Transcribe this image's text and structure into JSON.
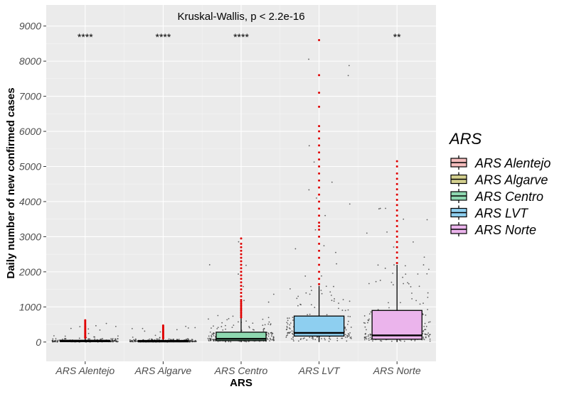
{
  "chart_data": {
    "type": "box",
    "title": "Kruskal-Wallis, p < 2.2e-16",
    "xlabel": "ARS",
    "ylabel": "Daily number of new confirmed cases",
    "ylim": [
      -550,
      9600
    ],
    "yticks": [
      0,
      1000,
      2000,
      3000,
      4000,
      5000,
      6000,
      7000,
      8000,
      9000
    ],
    "categories": [
      "ARS Alentejo",
      "ARS Algarve",
      "ARS Centro",
      "ARS LVT",
      "ARS Norte"
    ],
    "colors": [
      "#f4bcbc",
      "#d4d08e",
      "#8ed8b0",
      "#8ecff0",
      "#ebb4ec"
    ],
    "significance": [
      "****",
      "****",
      "****",
      "",
      "**"
    ],
    "boxes": [
      {
        "q1": 10,
        "median": 25,
        "q3": 50,
        "whisker_low": 0,
        "whisker_high": 100
      },
      {
        "q1": 10,
        "median": 20,
        "q3": 45,
        "whisker_low": 0,
        "whisker_high": 90
      },
      {
        "q1": 40,
        "median": 90,
        "q3": 280,
        "whisker_low": 0,
        "whisker_high": 690
      },
      {
        "q1": 170,
        "median": 260,
        "q3": 740,
        "whisker_low": 0,
        "whisker_high": 1600
      },
      {
        "q1": 80,
        "median": 190,
        "q3": 900,
        "whisker_low": 0,
        "whisker_high": 2200
      }
    ],
    "outliers": [
      [
        120,
        140,
        160,
        190,
        220,
        250,
        280,
        310,
        340,
        370,
        400,
        430,
        460,
        500,
        540,
        580,
        620
      ],
      [
        100,
        120,
        140,
        170,
        200,
        230,
        260,
        290,
        320,
        350,
        380,
        410,
        440,
        470
      ],
      [
        700,
        750,
        800,
        850,
        900,
        950,
        1000,
        1050,
        1100,
        1150,
        1200,
        1300,
        1400,
        1500,
        1600,
        1700,
        1800,
        1900,
        2000,
        2100,
        2200,
        2300,
        2400,
        2500,
        2600,
        2700,
        2800,
        2950
      ],
      [
        1650,
        1800,
        2000,
        2200,
        2400,
        2600,
        2800,
        3000,
        3200,
        3300,
        3400,
        3600,
        3800,
        4000,
        4200,
        4400,
        4600,
        4800,
        5000,
        5200,
        5400,
        5600,
        5800,
        6000,
        6150,
        6700,
        7100,
        7600,
        8600
      ],
      [
        2250,
        2400,
        2550,
        2700,
        2850,
        3000,
        3150,
        3300,
        3450,
        3600,
        3750,
        3900,
        4050,
        4200,
        4350,
        4500,
        4650,
        4800,
        5000,
        5150
      ]
    ],
    "jitter_max": [
      620,
      470,
      2950,
      8600,
      5150
    ],
    "legend": {
      "title": "ARS",
      "entries": [
        "ARS Alentejo",
        "ARS Algarve",
        "ARS Centro",
        "ARS LVT",
        "ARS Norte"
      ],
      "position": "right"
    },
    "grid": true,
    "outlier_color": "#e00000",
    "jitter_color": "#333333"
  }
}
